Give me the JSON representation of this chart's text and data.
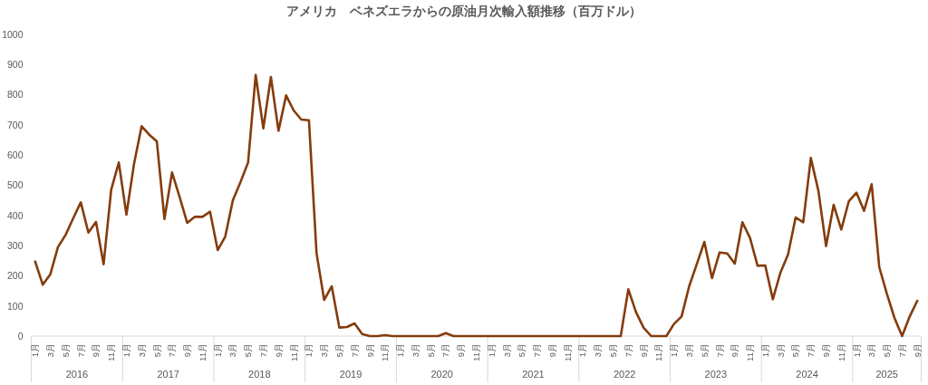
{
  "chart_data": {
    "type": "line",
    "title": "アメリカ　ベネズエラからの原油月次輸入額推移（百万ドル）",
    "categories": [
      "1月",
      null,
      "3月",
      null,
      "5月",
      null,
      "7月",
      null,
      "9月",
      null,
      "11月",
      null,
      "1月",
      null,
      "3月",
      null,
      "5月",
      null,
      "7月",
      null,
      "9月",
      null,
      "11月",
      null,
      "1月",
      null,
      "3月",
      null,
      "5月",
      null,
      "7月",
      null,
      "9月",
      null,
      "11月",
      null,
      "1月",
      null,
      "3月",
      null,
      "5月",
      null,
      "7月",
      null,
      "9月",
      null,
      "11月",
      null,
      "1月",
      null,
      "3月",
      null,
      "5月",
      null,
      "7月",
      null,
      "9月",
      null,
      "11月",
      null,
      "1月",
      null,
      "3月",
      null,
      "5月",
      null,
      "7月",
      null,
      "9月",
      null,
      "11月",
      null,
      "1月",
      null,
      "3月",
      null,
      "5月",
      null,
      "7月",
      null,
      "9月",
      null,
      "11月",
      null,
      "1月",
      null,
      "3月",
      null,
      "5月",
      null,
      "7月",
      null,
      "9月",
      null,
      "11月",
      null,
      "1月",
      null,
      "3月",
      null,
      "5月",
      null,
      "7月",
      null,
      "9月",
      null,
      "11月",
      null,
      "1月",
      null,
      "3月",
      null,
      "5月",
      null,
      "7月",
      null,
      "9月"
    ],
    "series": [
      {
        "color": "#843c0c",
        "values": [
          247,
          170,
          205,
          295,
          335,
          390,
          443,
          343,
          378,
          238,
          485,
          575,
          402,
          570,
          695,
          667,
          645,
          388,
          542,
          460,
          375,
          395,
          395,
          412,
          285,
          330,
          450,
          510,
          575,
          865,
          688,
          858,
          680,
          797,
          747,
          717,
          715,
          275,
          120,
          165,
          28,
          30,
          42,
          7,
          0,
          0,
          3,
          0,
          0,
          0,
          0,
          0,
          0,
          0,
          10,
          0,
          0,
          0,
          0,
          0,
          0,
          0,
          0,
          0,
          0,
          0,
          0,
          0,
          0,
          0,
          0,
          0,
          0,
          0,
          0,
          0,
          0,
          0,
          155,
          80,
          28,
          0,
          0,
          0,
          40,
          65,
          165,
          238,
          312,
          192,
          277,
          274,
          240,
          377,
          325,
          233,
          234,
          122,
          210,
          270,
          393,
          377,
          590,
          480,
          298,
          435,
          353,
          447,
          475,
          415,
          503,
          228,
          140,
          60,
          0,
          65,
          117
        ]
      }
    ],
    "ylim": [
      0,
      1000
    ],
    "yticks": [
      0,
      100,
      200,
      300,
      400,
      500,
      600,
      700,
      800,
      900,
      1000
    ],
    "line_style": "solid",
    "annotations": [
      "2016",
      "2017",
      "2018",
      "2019",
      "2020",
      "2021",
      "2022",
      "2023",
      "2024",
      "2025"
    ]
  }
}
